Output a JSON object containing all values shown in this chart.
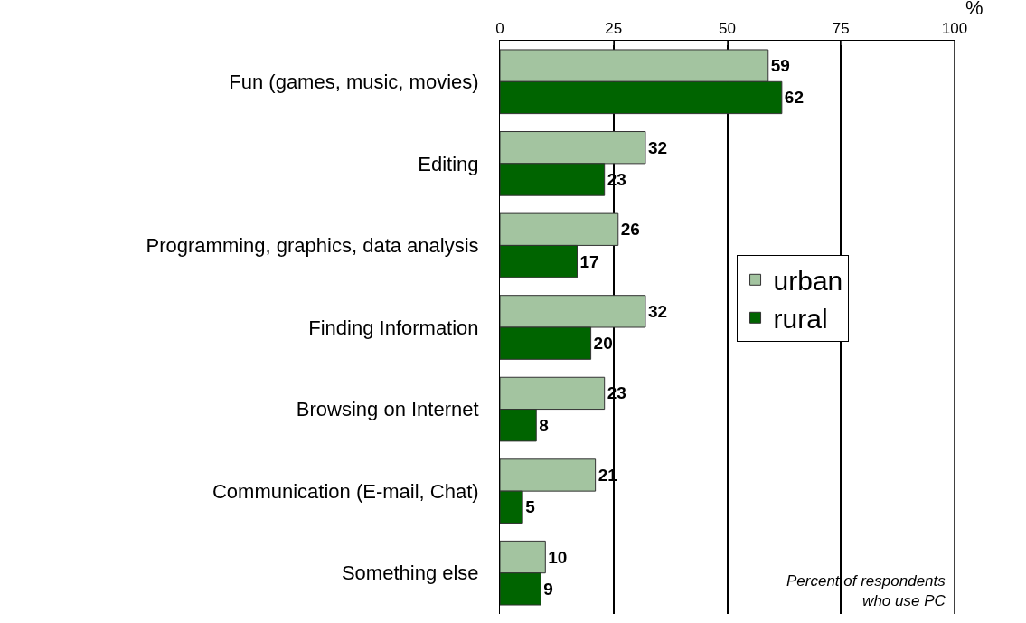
{
  "chart_data": {
    "type": "bar",
    "orientation": "horizontal",
    "categories": [
      "Fun (games, music, movies)",
      "Editing",
      "Programming, graphics, data analysis",
      "Finding Information",
      "Browsing on Internet",
      "Communication (E-mail, Chat)",
      "Something else"
    ],
    "series": [
      {
        "name": "urban",
        "color": "#a3c4a0",
        "values": [
          59,
          32,
          26,
          32,
          23,
          21,
          10
        ]
      },
      {
        "name": "rural",
        "color": "#006400",
        "values": [
          62,
          23,
          17,
          20,
          8,
          5,
          9
        ]
      }
    ],
    "xlabel": "%",
    "xlim": [
      0,
      100
    ],
    "xticks": [
      0,
      25,
      50,
      75,
      100
    ],
    "grid": "x",
    "legend": "right",
    "data_labels": true,
    "annotations": [
      "Percent of respondents who use PC"
    ]
  }
}
